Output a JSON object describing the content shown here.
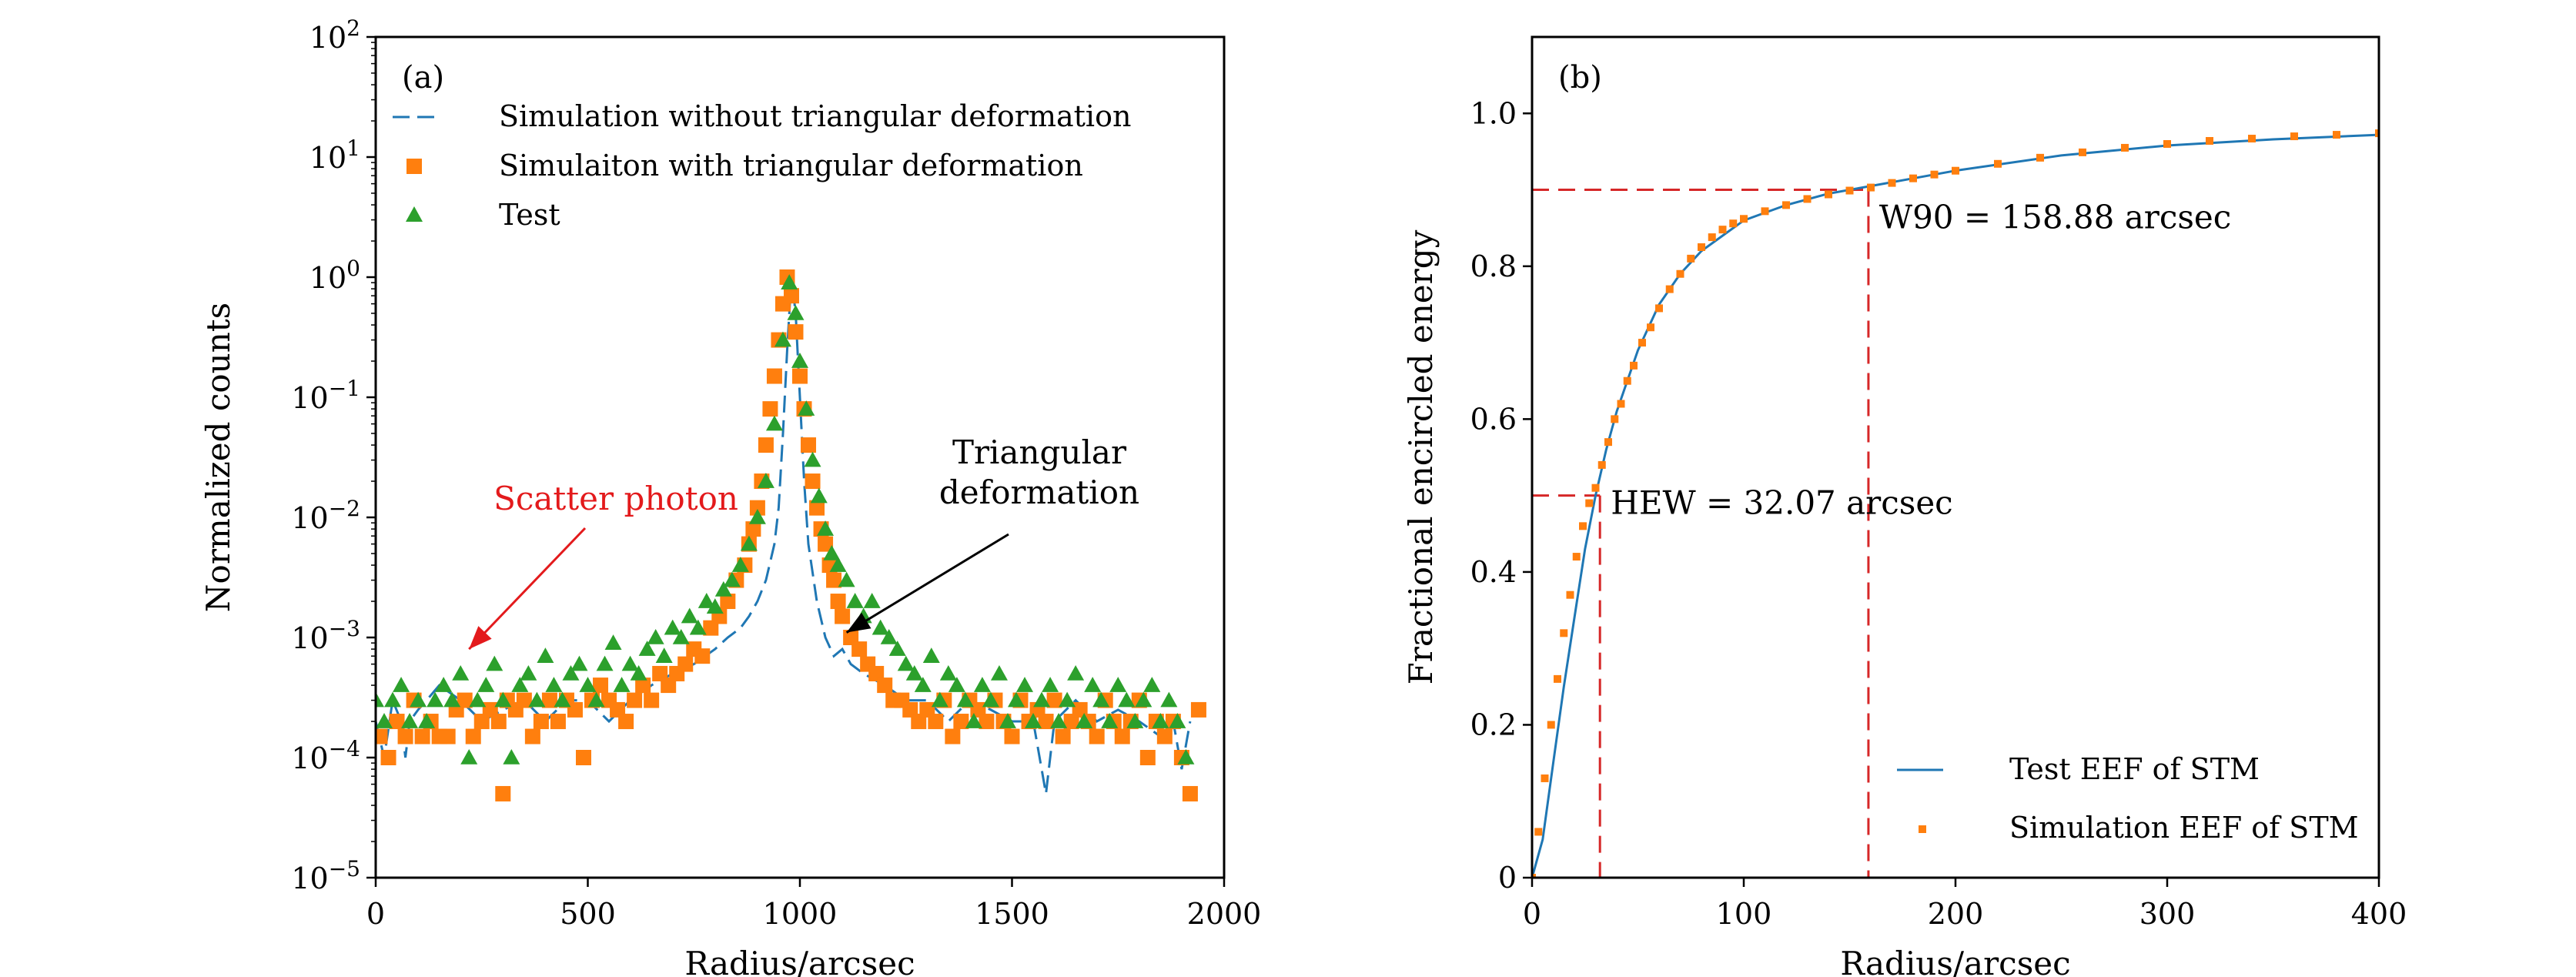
{
  "chart_data": [
    {
      "type": "scatter",
      "panel_label": "(a)",
      "xlabel": "Radius/arcsec",
      "ylabel": "Normalized counts",
      "xlim": [
        0,
        2000
      ],
      "ylim": [
        1e-05,
        100
      ],
      "yscale": "log",
      "x_ticks": [
        {
          "v": 0,
          "label": "0"
        },
        {
          "v": 500,
          "label": "500"
        },
        {
          "v": 1000,
          "label": "1000"
        },
        {
          "v": 1500,
          "label": "1500"
        },
        {
          "v": 2000,
          "label": "2000"
        }
      ],
      "y_ticks": [
        {
          "v": 1e-05,
          "base": "10",
          "exp": "−5"
        },
        {
          "v": 0.0001,
          "base": "10",
          "exp": "−4"
        },
        {
          "v": 0.001,
          "base": "10",
          "exp": "−3"
        },
        {
          "v": 0.01,
          "base": "10",
          "exp": "−2"
        },
        {
          "v": 0.1,
          "base": "10",
          "exp": "−1"
        },
        {
          "v": 1,
          "base": "10",
          "exp": "0"
        },
        {
          "v": 10,
          "base": "10",
          "exp": "1"
        },
        {
          "v": 100,
          "base": "10",
          "exp": "2"
        }
      ],
      "grid": false,
      "legend_position": "top-left",
      "series": [
        {
          "name": "Simulation without triangular deformation",
          "kind": "dashed-line",
          "color": "#1f77b4",
          "x": [
            0,
            20,
            40,
            60,
            70,
            80,
            100,
            120,
            150,
            200,
            250,
            300,
            350,
            400,
            450,
            500,
            550,
            600,
            650,
            700,
            750,
            800,
            830,
            860,
            880,
            900,
            920,
            940,
            950,
            960,
            970,
            980,
            990,
            1000,
            1010,
            1020,
            1040,
            1060,
            1080,
            1100,
            1120,
            1150,
            1200,
            1250,
            1300,
            1350,
            1400,
            1450,
            1500,
            1550,
            1580,
            1600,
            1650,
            1700,
            1750,
            1800,
            1850,
            1880,
            1900,
            1920
          ],
          "y": [
            0.0002,
            0.0001,
            0.0003,
            0.0002,
            0.0001,
            0.0002,
            0.00025,
            0.0003,
            0.0004,
            0.0003,
            0.0002,
            0.00025,
            0.0003,
            0.0002,
            0.0003,
            0.0003,
            0.0002,
            0.0003,
            0.0004,
            0.0005,
            0.0006,
            0.0008,
            0.001,
            0.0012,
            0.0015,
            0.002,
            0.003,
            0.006,
            0.012,
            0.05,
            0.25,
            1.0,
            0.5,
            0.1,
            0.02,
            0.006,
            0.002,
            0.001,
            0.0007,
            0.0008,
            0.0006,
            0.0005,
            0.0004,
            0.0003,
            0.0003,
            0.0002,
            0.0003,
            0.00025,
            0.0002,
            0.0002,
            5e-05,
            0.0002,
            0.0003,
            0.0002,
            0.00025,
            0.0002,
            0.00015,
            0.0002,
            8e-05,
            0.0002
          ]
        },
        {
          "name": "Simulaiton with triangular deformation",
          "kind": "square-marker",
          "color": "#ff7f0e",
          "x": [
            10,
            30,
            50,
            70,
            90,
            110,
            130,
            150,
            170,
            190,
            210,
            230,
            250,
            270,
            290,
            300,
            310,
            330,
            350,
            370,
            390,
            410,
            430,
            450,
            470,
            490,
            510,
            530,
            550,
            570,
            590,
            610,
            630,
            650,
            670,
            690,
            710,
            730,
            750,
            770,
            790,
            810,
            830,
            850,
            870,
            880,
            890,
            900,
            910,
            920,
            930,
            940,
            950,
            960,
            970,
            980,
            990,
            1000,
            1010,
            1020,
            1030,
            1040,
            1050,
            1060,
            1070,
            1080,
            1090,
            1100,
            1120,
            1140,
            1160,
            1180,
            1200,
            1220,
            1240,
            1260,
            1280,
            1300,
            1320,
            1340,
            1360,
            1380,
            1400,
            1420,
            1440,
            1460,
            1480,
            1500,
            1520,
            1540,
            1560,
            1580,
            1600,
            1620,
            1640,
            1660,
            1680,
            1700,
            1720,
            1740,
            1760,
            1780,
            1800,
            1820,
            1840,
            1860,
            1880,
            1900,
            1920,
            1940
          ],
          "y": [
            0.00015,
            0.0001,
            0.0002,
            0.00015,
            0.0003,
            0.00015,
            0.0002,
            0.00015,
            0.00015,
            0.00025,
            0.0003,
            0.00015,
            0.0002,
            0.00025,
            0.0002,
            5e-05,
            0.0003,
            0.00025,
            0.0003,
            0.00015,
            0.0002,
            0.0003,
            0.0002,
            0.0003,
            0.00025,
            0.0001,
            0.0003,
            0.0004,
            0.0003,
            0.00025,
            0.0002,
            0.0003,
            0.0004,
            0.0003,
            0.0005,
            0.0004,
            0.0005,
            0.0006,
            0.0008,
            0.0007,
            0.0012,
            0.0015,
            0.002,
            0.003,
            0.004,
            0.006,
            0.008,
            0.012,
            0.02,
            0.04,
            0.08,
            0.15,
            0.3,
            0.6,
            1.0,
            0.7,
            0.35,
            0.15,
            0.08,
            0.04,
            0.02,
            0.012,
            0.008,
            0.006,
            0.004,
            0.003,
            0.002,
            0.0015,
            0.001,
            0.0008,
            0.0006,
            0.0005,
            0.0004,
            0.0003,
            0.0003,
            0.00025,
            0.0002,
            0.00025,
            0.0002,
            0.0003,
            0.00015,
            0.0002,
            0.0003,
            0.00025,
            0.0002,
            0.0003,
            0.0002,
            0.00015,
            0.0003,
            0.0002,
            0.00025,
            0.0002,
            0.0003,
            0.00015,
            0.0002,
            0.00025,
            0.0002,
            0.00015,
            0.0003,
            0.0002,
            0.00015,
            0.0002,
            0.0003,
            0.0001,
            0.0002,
            0.00015,
            0.0002,
            0.0001,
            5e-05,
            0.00025
          ]
        },
        {
          "name": "Test",
          "kind": "triangle-marker",
          "color": "#2ca02c",
          "x": [
            0,
            20,
            40,
            60,
            80,
            100,
            120,
            140,
            160,
            180,
            200,
            220,
            240,
            260,
            280,
            300,
            320,
            340,
            360,
            380,
            400,
            420,
            440,
            460,
            480,
            500,
            520,
            540,
            560,
            580,
            600,
            620,
            640,
            660,
            680,
            700,
            720,
            740,
            760,
            780,
            800,
            820,
            840,
            860,
            880,
            900,
            920,
            940,
            960,
            975,
            990,
            1000,
            1015,
            1030,
            1045,
            1060,
            1075,
            1090,
            1110,
            1130,
            1150,
            1170,
            1190,
            1210,
            1230,
            1250,
            1270,
            1290,
            1310,
            1330,
            1350,
            1370,
            1390,
            1410,
            1430,
            1450,
            1470,
            1490,
            1510,
            1530,
            1550,
            1570,
            1590,
            1610,
            1630,
            1650,
            1670,
            1690,
            1710,
            1730,
            1750,
            1770,
            1790,
            1810,
            1830,
            1850,
            1870,
            1890,
            1910
          ],
          "y": [
            0.0003,
            0.0002,
            0.0003,
            0.0004,
            0.0002,
            0.0003,
            0.0002,
            0.0003,
            0.0004,
            0.0003,
            0.0005,
            0.0001,
            0.0003,
            0.0004,
            0.0006,
            0.0003,
            0.0001,
            0.0004,
            0.0005,
            0.0003,
            0.0007,
            0.0004,
            0.0003,
            0.0005,
            0.0006,
            0.0004,
            0.0003,
            0.0006,
            0.0009,
            0.0004,
            0.0006,
            0.0005,
            0.0008,
            0.001,
            0.0007,
            0.0012,
            0.001,
            0.0015,
            0.0012,
            0.002,
            0.0018,
            0.0025,
            0.003,
            0.004,
            0.006,
            0.01,
            0.02,
            0.06,
            0.3,
            0.9,
            0.5,
            0.2,
            0.08,
            0.03,
            0.015,
            0.008,
            0.005,
            0.004,
            0.003,
            0.002,
            0.0015,
            0.002,
            0.0012,
            0.001,
            0.0008,
            0.0006,
            0.0005,
            0.0004,
            0.0007,
            0.0003,
            0.0005,
            0.0004,
            0.0003,
            0.0002,
            0.0004,
            0.0003,
            0.0005,
            0.0002,
            0.0003,
            0.0004,
            0.0002,
            0.0003,
            0.0004,
            0.0002,
            0.0003,
            0.0005,
            0.0002,
            0.0004,
            0.0003,
            0.0002,
            0.0004,
            0.0003,
            0.0002,
            0.0003,
            0.0004,
            0.0002,
            0.0003,
            0.0002,
            0.0001
          ]
        }
      ],
      "annotations": [
        {
          "text": "Scatter photon",
          "color": "#e31a1c",
          "arrow_to": [
            220,
            0.0008
          ],
          "arrow_color": "#e31a1c"
        },
        {
          "lines": [
            "Triangular",
            "deformation"
          ],
          "color": "#000000",
          "arrow_to": [
            1110,
            0.0011
          ],
          "arrow_color": "#000000"
        }
      ]
    },
    {
      "type": "line",
      "panel_label": "(b)",
      "xlabel": "Radius/arcsec",
      "ylabel": "Fractional encircled energy",
      "xlim": [
        0,
        400
      ],
      "ylim": [
        0,
        1.1
      ],
      "x_ticks": [
        {
          "v": 0,
          "label": "0"
        },
        {
          "v": 100,
          "label": "100"
        },
        {
          "v": 200,
          "label": "200"
        },
        {
          "v": 300,
          "label": "300"
        },
        {
          "v": 400,
          "label": "400"
        }
      ],
      "y_ticks": [
        {
          "v": 0,
          "label": "0"
        },
        {
          "v": 0.2,
          "label": "0.2"
        },
        {
          "v": 0.4,
          "label": "0.4"
        },
        {
          "v": 0.6,
          "label": "0.6"
        },
        {
          "v": 0.8,
          "label": "0.8"
        },
        {
          "v": 1.0,
          "label": "1.0"
        }
      ],
      "grid": false,
      "legend_position": "bottom-right",
      "series": [
        {
          "name": "Test EEF of STM",
          "kind": "solid-line",
          "color": "#1f77b4",
          "x": [
            0,
            5,
            10,
            15,
            20,
            25,
            30,
            35,
            40,
            50,
            60,
            70,
            80,
            90,
            100,
            120,
            140,
            160,
            180,
            200,
            250,
            300,
            350,
            400
          ],
          "y": [
            0,
            0.05,
            0.15,
            0.25,
            0.34,
            0.43,
            0.5,
            0.56,
            0.61,
            0.69,
            0.75,
            0.79,
            0.82,
            0.84,
            0.86,
            0.88,
            0.895,
            0.905,
            0.915,
            0.925,
            0.945,
            0.958,
            0.966,
            0.972
          ]
        },
        {
          "name": "Simulation EEF of STM",
          "kind": "square-marker",
          "color": "#ff7f0e",
          "x": [
            0,
            3,
            6,
            9,
            12,
            15,
            18,
            21,
            24,
            27,
            30,
            33,
            36,
            39,
            42,
            45,
            48,
            52,
            56,
            60,
            65,
            70,
            75,
            80,
            85,
            90,
            95,
            100,
            110,
            120,
            130,
            140,
            150,
            160,
            170,
            180,
            190,
            200,
            220,
            240,
            260,
            280,
            300,
            320,
            340,
            360,
            380,
            400
          ],
          "y": [
            0,
            0.06,
            0.13,
            0.2,
            0.26,
            0.32,
            0.37,
            0.42,
            0.46,
            0.49,
            0.51,
            0.54,
            0.57,
            0.6,
            0.62,
            0.65,
            0.67,
            0.7,
            0.72,
            0.745,
            0.77,
            0.79,
            0.81,
            0.825,
            0.838,
            0.848,
            0.856,
            0.862,
            0.872,
            0.88,
            0.888,
            0.894,
            0.899,
            0.903,
            0.909,
            0.915,
            0.92,
            0.925,
            0.934,
            0.942,
            0.949,
            0.955,
            0.96,
            0.964,
            0.967,
            0.97,
            0.972,
            0.974
          ]
        }
      ],
      "reference_lines": [
        {
          "label": "HEW = 32.07 arcsec",
          "x": 32.07,
          "y": 0.5,
          "color": "#d62728"
        },
        {
          "label": "W90 = 158.88 arcsec",
          "x": 158.88,
          "y": 0.9,
          "color": "#d62728"
        }
      ]
    }
  ]
}
